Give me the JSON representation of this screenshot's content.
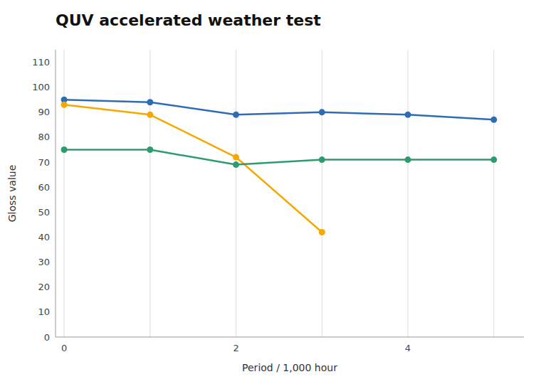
{
  "chart_data": {
    "type": "line",
    "title": "QUV accelerated weather test",
    "x_label": "Period / 1,000 hour",
    "y_label": "Gloss value",
    "x": [
      0,
      1,
      2,
      3,
      4,
      5
    ],
    "series": [
      {
        "color": "#2E6DB4",
        "values": [
          95,
          94,
          89,
          90,
          89,
          87
        ]
      },
      {
        "color": "#F5A800",
        "values": [
          93,
          89,
          72,
          42,
          null,
          null
        ]
      },
      {
        "color": "#2E9B6E",
        "values": [
          75,
          75,
          69,
          71,
          71,
          71
        ]
      }
    ],
    "marker": "circle",
    "xlim": [
      -0.1,
      5.35
    ],
    "xticks": [
      0,
      {
        "value": 1,
        "label": null
      },
      2,
      {
        "value": 3,
        "label": null
      },
      4,
      {
        "value": 5,
        "label": null
      }
    ],
    "ylim": [
      0,
      115
    ],
    "yticks": [
      0,
      10,
      20,
      30,
      40,
      50,
      60,
      70,
      80,
      90,
      100,
      110
    ],
    "grid": "x"
  }
}
